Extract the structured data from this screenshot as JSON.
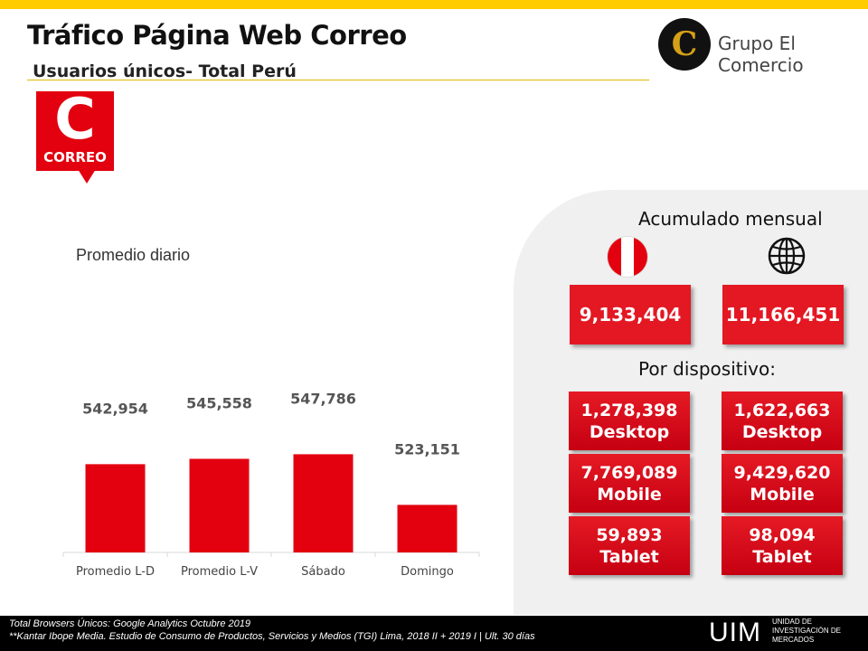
{
  "header": {
    "title": "Tráfico Página Web Correo",
    "subtitle": "Usuarios únicos- Total Perú",
    "brand_name": "Grupo El Comercio",
    "brand_logo_letter": "C",
    "accent_color": "#FFCC00"
  },
  "logo": {
    "letter": "C",
    "word": "CORREO",
    "color": "#E3000F"
  },
  "chart_title": "Promedio diario",
  "chart_data": {
    "type": "bar",
    "categories": [
      "Promedio L-D",
      "Promedio L-V",
      "Sábado",
      "Domingo"
    ],
    "values": [
      542954,
      545558,
      547786,
      523151
    ],
    "value_labels": [
      "542,954",
      "545,558",
      "547,786",
      "523,151"
    ],
    "ylim": [
      500000,
      555000
    ],
    "bar_color": "#E3000F",
    "grid": false,
    "legend": "none"
  },
  "panel": {
    "heading_monthly": "Acumulado mensual",
    "heading_device": "Por dispositivo:",
    "flag_icon": "peru-flag-icon",
    "globe_icon": "globe-icon",
    "monthly": {
      "peru": "9,133,404",
      "global": "11,166,451"
    },
    "devices": [
      {
        "peru_value": "1,278,398",
        "global_value": "1,622,663",
        "label": "Desktop"
      },
      {
        "peru_value": "7,769,089",
        "global_value": "9,429,620",
        "label": "Mobile"
      },
      {
        "peru_value": "59,893",
        "global_value": "98,094",
        "label": "Tablet"
      }
    ]
  },
  "footer": {
    "line1": "Total Browsers Únicos: Google Analytics Octubre 2019",
    "line2": "**Kantar Ibope Media. Estudio de Consumo de Productos, Servicios y Medios (TGI) Lima, 2018 II + 2019 I  | Ult. 30 días",
    "uim": "UIM",
    "uim_sub1": "UNIDAD DE",
    "uim_sub2": "INVESTIGACIÓN DE",
    "uim_sub3": "MERCADOS"
  }
}
